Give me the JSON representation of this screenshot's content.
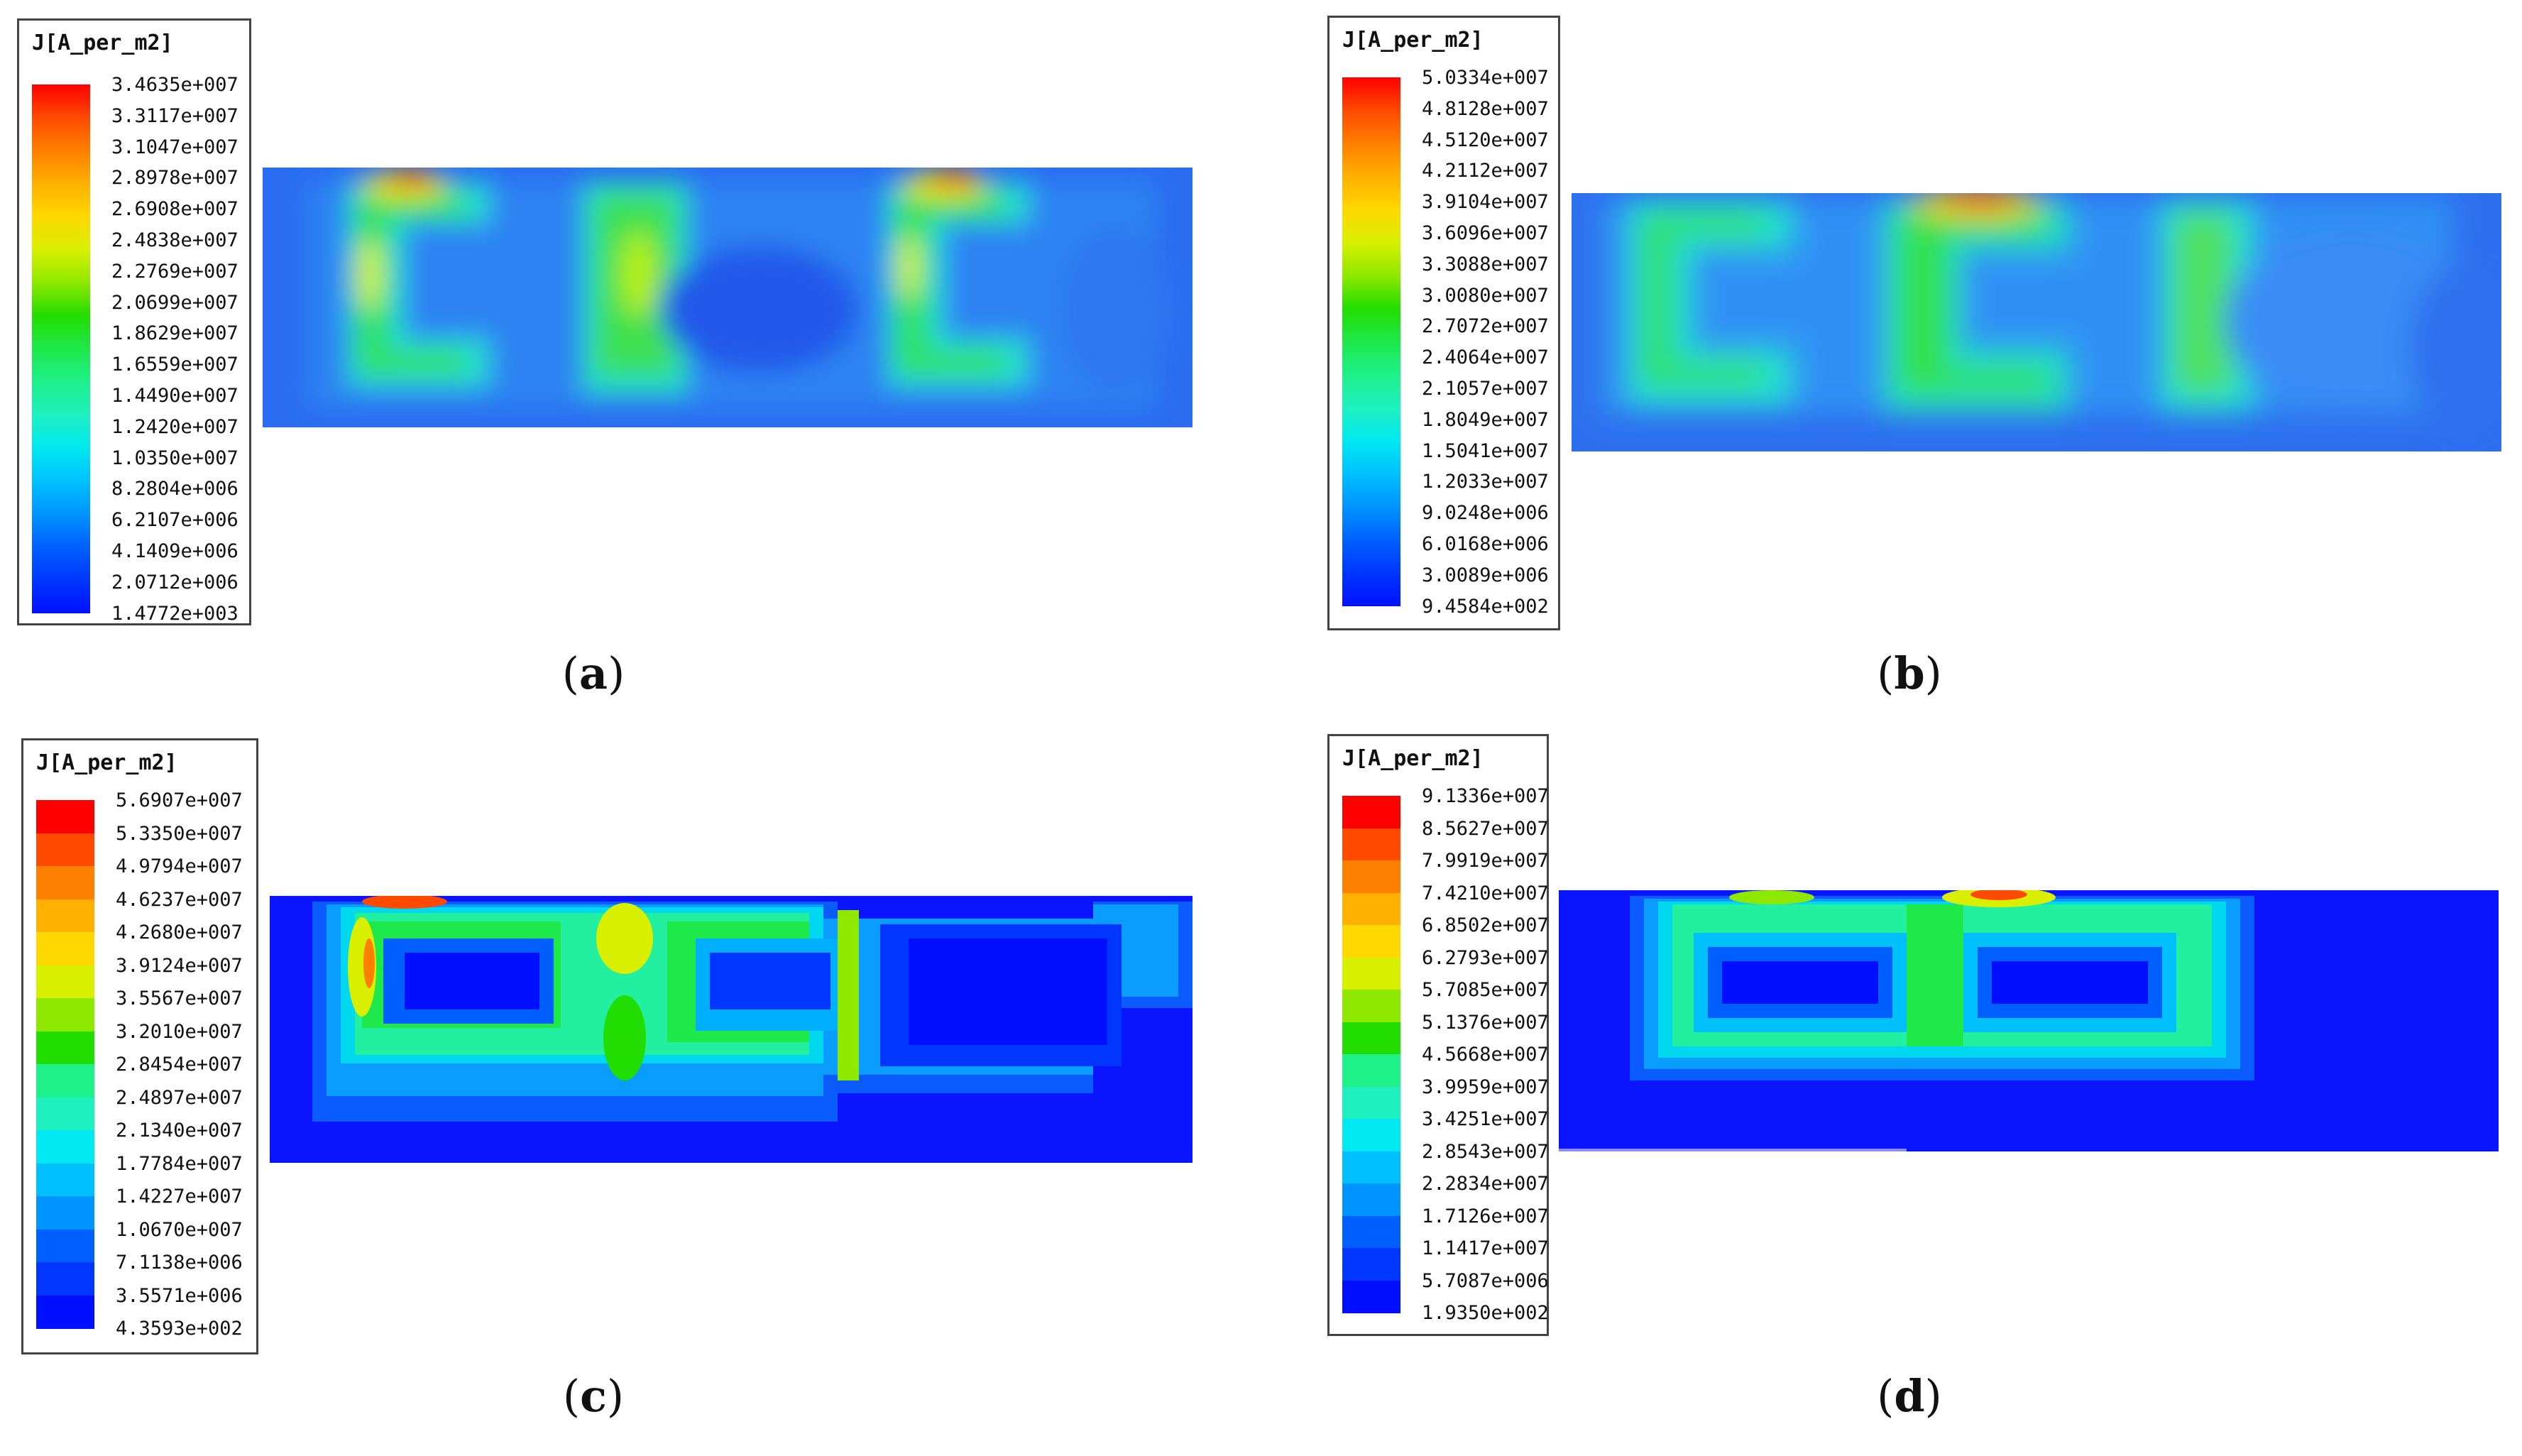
{
  "panels": [
    {
      "id": "a",
      "legend_title": "J[A_per_m2]",
      "ticks": [
        "3.4635e+007",
        "3.3117e+007",
        "3.1047e+007",
        "2.8978e+007",
        "2.6908e+007",
        "2.4838e+007",
        "2.2769e+007",
        "2.0699e+007",
        "1.8629e+007",
        "1.6559e+007",
        "1.4490e+007",
        "1.2420e+007",
        "1.0350e+007",
        "8.2804e+006",
        "6.2107e+006",
        "4.1409e+006",
        "2.0712e+006",
        "1.4772e+003"
      ],
      "caption": "a",
      "style": "smooth"
    },
    {
      "id": "b",
      "legend_title": "J[A_per_m2]",
      "ticks": [
        "5.0334e+007",
        "4.8128e+007",
        "4.5120e+007",
        "4.2112e+007",
        "3.9104e+007",
        "3.6096e+007",
        "3.3088e+007",
        "3.0080e+007",
        "2.7072e+007",
        "2.4064e+007",
        "2.1057e+007",
        "1.8049e+007",
        "1.5041e+007",
        "1.2033e+007",
        "9.0248e+006",
        "6.0168e+006",
        "3.0089e+006",
        "9.4584e+002"
      ],
      "caption": "b",
      "style": "smooth"
    },
    {
      "id": "c",
      "legend_title": "J[A_per_m2]",
      "ticks": [
        "5.6907e+007",
        "5.3350e+007",
        "4.9794e+007",
        "4.6237e+007",
        "4.2680e+007",
        "3.9124e+007",
        "3.5567e+007",
        "3.2010e+007",
        "2.8454e+007",
        "2.4897e+007",
        "2.1340e+007",
        "1.7784e+007",
        "1.4227e+007",
        "1.0670e+007",
        "7.1138e+006",
        "3.5571e+006",
        "4.3593e+002"
      ],
      "caption": "c",
      "style": "banded"
    },
    {
      "id": "d",
      "legend_title": "J[A_per_m2]",
      "ticks": [
        "9.1336e+007",
        "8.5627e+007",
        "7.9919e+007",
        "7.4210e+007",
        "6.8502e+007",
        "6.2793e+007",
        "5.7085e+007",
        "5.1376e+007",
        "4.5668e+007",
        "3.9959e+007",
        "3.4251e+007",
        "2.8543e+007",
        "2.2834e+007",
        "1.7126e+007",
        "1.1417e+007",
        "5.7087e+006",
        "1.9350e+002"
      ],
      "caption": "d",
      "style": "banded"
    }
  ],
  "colors": {
    "scale": [
      "#ff0000",
      "#ff4a00",
      "#ff7f00",
      "#ffb000",
      "#ffd800",
      "#d8f000",
      "#8ee800",
      "#22dd00",
      "#1ee84a",
      "#1ef08a",
      "#1ef0c0",
      "#00e8f0",
      "#00c0ff",
      "#0094ff",
      "#0060ff",
      "#0036ff",
      "#0010ff"
    ],
    "field_base": "#1e5cf0"
  }
}
